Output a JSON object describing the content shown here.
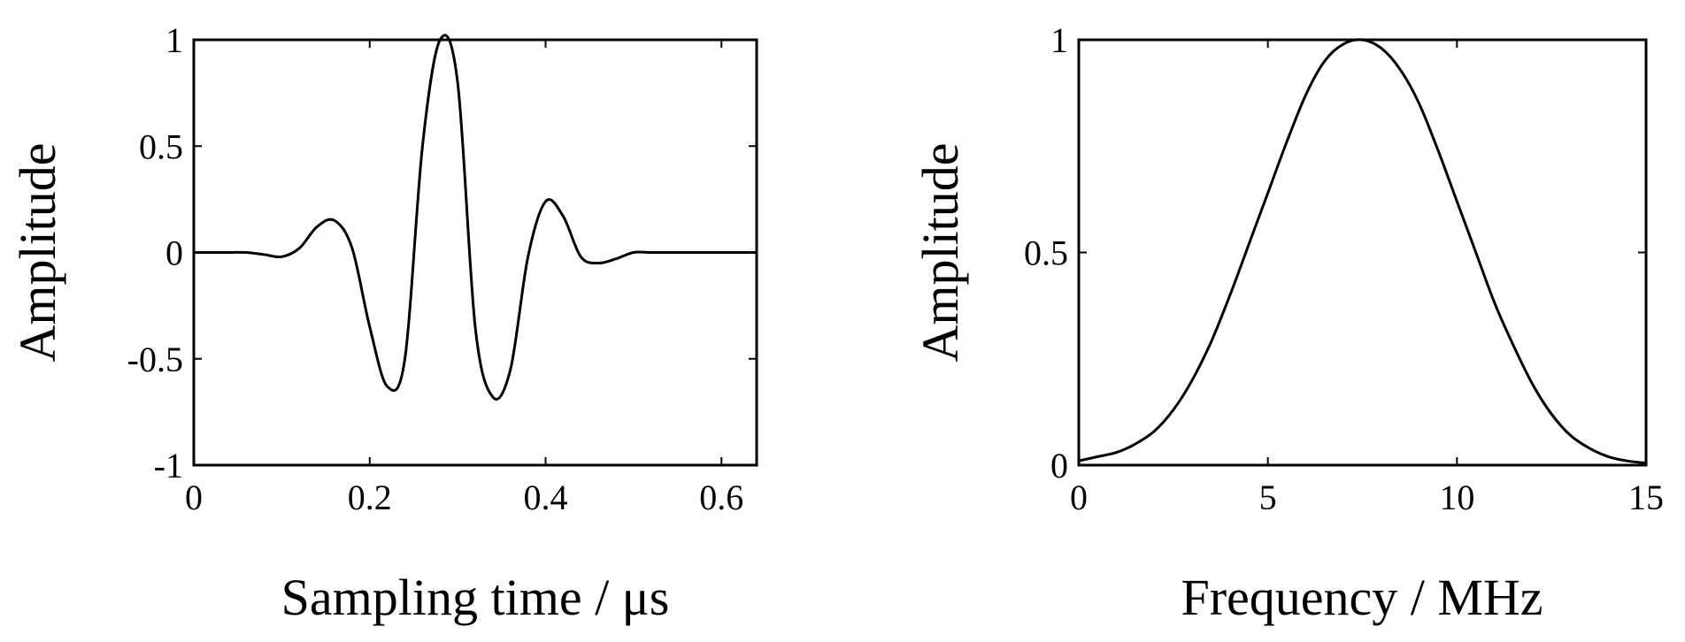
{
  "chart_data": [
    {
      "type": "line",
      "title": "",
      "xlabel": "Sampling time / μs",
      "ylabel": "Amplitude",
      "xlim": [
        0,
        0.64
      ],
      "ylim": [
        -1,
        1
      ],
      "xticks": [
        0,
        0.2,
        0.4,
        0.6
      ],
      "xtick_labels": [
        "0",
        "0.2",
        "0.4",
        "0.6"
      ],
      "yticks": [
        -1,
        -0.5,
        0,
        0.5,
        1
      ],
      "ytick_labels": [
        "-1",
        "-0.5",
        "0",
        "0.5",
        "1"
      ],
      "grid": false,
      "series": [
        {
          "x": [
            0,
            0.02,
            0.04,
            0.06,
            0.08,
            0.1,
            0.12,
            0.14,
            0.16,
            0.18,
            0.2,
            0.22,
            0.24,
            0.26,
            0.28,
            0.3,
            0.32,
            0.34,
            0.36,
            0.38,
            0.4,
            0.42,
            0.44,
            0.46,
            0.48,
            0.5,
            0.52,
            0.54,
            0.56,
            0.58,
            0.6,
            0.62,
            0.64
          ],
          "y": [
            0.0,
            0.0,
            0.0,
            0.0,
            -0.01,
            -0.02,
            0.02,
            0.12,
            0.15,
            0.02,
            -0.35,
            -0.63,
            -0.5,
            0.5,
            1.0,
            0.8,
            -0.35,
            -0.68,
            -0.55,
            -0.02,
            0.24,
            0.17,
            -0.02,
            -0.05,
            -0.03,
            0.0,
            0.0,
            0.0,
            0.0,
            0.0,
            0.0,
            0.0,
            0.0
          ]
        }
      ]
    },
    {
      "type": "line",
      "title": "",
      "xlabel": "Frequency / MHz",
      "ylabel": "Amplitude",
      "xlim": [
        0,
        15
      ],
      "ylim": [
        0,
        1
      ],
      "xticks": [
        0,
        5,
        10,
        15
      ],
      "xtick_labels": [
        "0",
        "5",
        "10",
        "15"
      ],
      "yticks": [
        0,
        0.5,
        1
      ],
      "ytick_labels": [
        "0",
        "0.5",
        "1"
      ],
      "grid": false,
      "series": [
        {
          "x": [
            0,
            0.5,
            1,
            1.5,
            2,
            2.5,
            3,
            3.5,
            4,
            4.5,
            5,
            5.5,
            6,
            6.5,
            7,
            7.5,
            8,
            8.5,
            9,
            9.5,
            10,
            10.5,
            11,
            11.5,
            12,
            12.5,
            13,
            13.5,
            14,
            14.5,
            15
          ],
          "y": [
            0.01,
            0.02,
            0.03,
            0.05,
            0.08,
            0.13,
            0.2,
            0.29,
            0.4,
            0.52,
            0.64,
            0.76,
            0.87,
            0.95,
            0.99,
            1.0,
            0.98,
            0.93,
            0.85,
            0.74,
            0.62,
            0.5,
            0.38,
            0.28,
            0.19,
            0.12,
            0.07,
            0.04,
            0.02,
            0.01,
            0.005
          ]
        }
      ]
    }
  ]
}
